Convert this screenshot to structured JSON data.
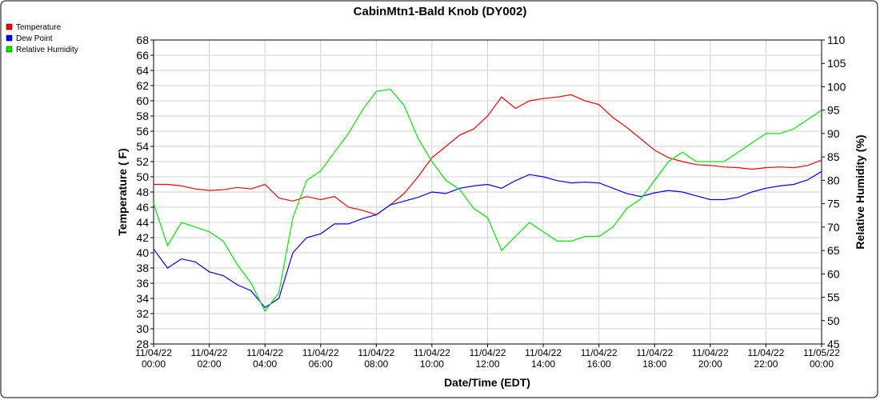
{
  "chart_data": {
    "type": "line",
    "title": "CabinMtn1-Bald Knob (DY002)",
    "xlabel": "Date/Time (EDT)",
    "ylabel": "Temperature ( F)",
    "y2label": "Relative Humidity (%)",
    "x": [
      "11/04/22 00:00",
      "11/04/22 00:30",
      "11/04/22 01:00",
      "11/04/22 01:30",
      "11/04/22 02:00",
      "11/04/22 02:30",
      "11/04/22 03:00",
      "11/04/22 03:30",
      "11/04/22 04:00",
      "11/04/22 04:30",
      "11/04/22 05:00",
      "11/04/22 05:30",
      "11/04/22 06:00",
      "11/04/22 06:30",
      "11/04/22 07:00",
      "11/04/22 07:30",
      "11/04/22 08:00",
      "11/04/22 08:30",
      "11/04/22 09:00",
      "11/04/22 09:30",
      "11/04/22 10:00",
      "11/04/22 10:30",
      "11/04/22 11:00",
      "11/04/22 11:30",
      "11/04/22 12:00",
      "11/04/22 12:30",
      "11/04/22 13:00",
      "11/04/22 13:30",
      "11/04/22 14:00",
      "11/04/22 14:30",
      "11/04/22 15:00",
      "11/04/22 15:30",
      "11/04/22 16:00",
      "11/04/22 16:30",
      "11/04/22 17:00",
      "11/04/22 17:30",
      "11/04/22 18:00",
      "11/04/22 18:30",
      "11/04/22 19:00",
      "11/04/22 19:30",
      "11/04/22 20:00",
      "11/04/22 20:30",
      "11/04/22 21:00",
      "11/04/22 21:30",
      "11/04/22 22:00",
      "11/04/22 22:30",
      "11/04/22 23:00",
      "11/04/22 23:30",
      "11/05/22 00:00"
    ],
    "series": [
      {
        "name": "Temperature",
        "color": "#ff0000",
        "values": [
          49.0,
          49.0,
          48.8,
          48.4,
          48.2,
          48.3,
          48.6,
          48.4,
          49.0,
          47.2,
          46.8,
          47.4,
          47.0,
          47.4,
          46.0,
          45.6,
          45.0,
          46.3,
          47.8,
          50.0,
          52.5,
          54.0,
          55.5,
          56.3,
          58.0,
          60.5,
          59.0,
          60.0,
          60.3,
          60.5,
          60.8,
          60.0,
          59.5,
          57.8,
          56.5,
          55.0,
          53.5,
          52.5,
          52.0,
          51.6,
          51.5,
          51.3,
          51.2,
          51.0,
          51.2,
          51.3,
          51.2,
          51.5,
          52.2
        ]
      },
      {
        "name": "Dew Point",
        "color": "#0000ff",
        "values": [
          40.5,
          38.0,
          39.2,
          38.8,
          37.5,
          37.0,
          35.8,
          35.0,
          32.8,
          34.0,
          40.0,
          42.0,
          42.5,
          43.8,
          43.8,
          44.5,
          45.0,
          46.3,
          46.8,
          47.3,
          48.0,
          47.8,
          48.5,
          48.8,
          49.0,
          48.5,
          49.5,
          50.3,
          50.0,
          49.5,
          49.2,
          49.3,
          49.2,
          48.5,
          47.8,
          47.4,
          47.9,
          48.2,
          48.0,
          47.5,
          47.0,
          47.0,
          47.3,
          48.0,
          48.5,
          48.8,
          49.0,
          49.6,
          50.7
        ]
      },
      {
        "name": "Relative Humidity",
        "color": "#00ee00",
        "axis": "y2",
        "values": [
          75,
          66,
          71,
          70,
          69,
          67,
          62,
          58,
          52,
          56,
          72,
          80,
          82,
          86,
          90,
          95,
          99,
          99.5,
          96,
          89,
          84,
          80,
          78,
          74,
          72,
          65,
          68,
          71,
          69,
          67,
          67,
          68,
          68,
          70,
          74,
          76,
          80,
          84,
          86,
          84,
          84,
          84,
          86,
          88,
          90,
          90,
          91,
          93,
          95
        ]
      }
    ],
    "xlim": [
      "11/04/22 00:00",
      "11/05/22 00:00"
    ],
    "xticks": [
      "11/04/22 00:00",
      "11/04/22 02:00",
      "11/04/22 04:00",
      "11/04/22 06:00",
      "11/04/22 08:00",
      "11/04/22 10:00",
      "11/04/22 12:00",
      "11/04/22 14:00",
      "11/04/22 16:00",
      "11/04/22 18:00",
      "11/04/22 20:00",
      "11/04/22 22:00",
      "11/05/22 00:00"
    ],
    "ylim": [
      28,
      68
    ],
    "yticks": [
      28,
      30,
      32,
      34,
      36,
      38,
      40,
      42,
      44,
      46,
      48,
      50,
      52,
      54,
      56,
      58,
      60,
      62,
      64,
      66,
      68
    ],
    "y2lim": [
      45,
      110
    ],
    "y2ticks": [
      45,
      50,
      55,
      60,
      65,
      70,
      75,
      80,
      85,
      90,
      95,
      100,
      105,
      110
    ],
    "grid": true,
    "legend": "top-left"
  }
}
